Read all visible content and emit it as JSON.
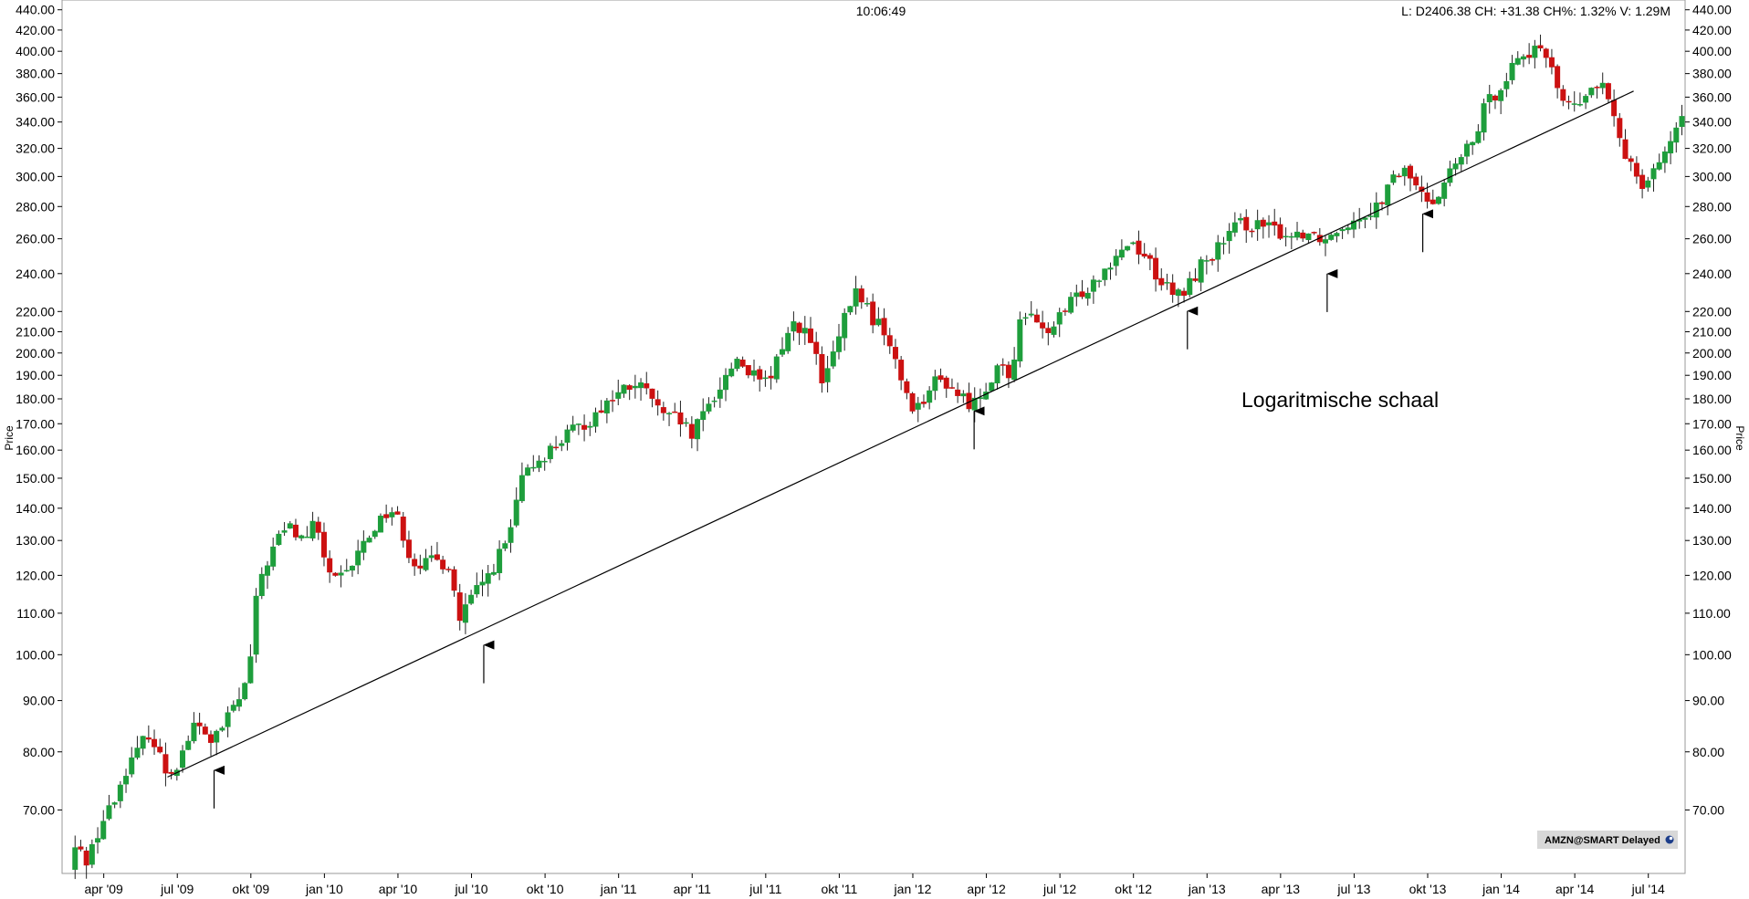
{
  "header": {
    "time": "10:06:49",
    "quote": "L: D2406.38 CH: +31.38 CH%: 1.32% V: 1.29M"
  },
  "badge": {
    "label": "AMZN@SMART Delayed",
    "icon": "status-dot-icon"
  },
  "annotation": "Logaritmische schaal",
  "colors": {
    "up": "#1e9e3c",
    "down": "#cc1111",
    "line": "#000000",
    "frame": "#9a9a9a",
    "badge_bg": "#d8d8d8"
  },
  "chart_data": {
    "type": "candlestick",
    "scale": "log",
    "ylabel": "Price",
    "ylim": [
      60.5,
      450
    ],
    "y_ticks": [
      "70.00",
      "80.00",
      "90.00",
      "100.00",
      "110.00",
      "120.00",
      "130.00",
      "140.00",
      "150.00",
      "160.00",
      "170.00",
      "180.00",
      "190.00",
      "200.00",
      "210.00",
      "220.00",
      "240.00",
      "260.00",
      "280.00",
      "300.00",
      "320.00",
      "340.00",
      "360.00",
      "380.00",
      "400.00",
      "420.00",
      "440.00"
    ],
    "x_ticks": [
      "apr '09",
      "jul '09",
      "okt '09",
      "jan '10",
      "apr '10",
      "jul '10",
      "okt '10",
      "jan '11",
      "apr '11",
      "jul '11",
      "okt '11",
      "jan '12",
      "apr '12",
      "jul '12",
      "okt '12",
      "jan '13",
      "apr '13",
      "jul '13",
      "okt '13",
      "jan '14",
      "apr '14",
      "jul '14"
    ],
    "x_tick_months": [
      0,
      3,
      6,
      9,
      12,
      15,
      18,
      21,
      24,
      27,
      30,
      33,
      36,
      39,
      42,
      45,
      48,
      51,
      54,
      57,
      60,
      63
    ],
    "x_range_months": [
      -1.7,
      64.5
    ],
    "trendline": {
      "from": {
        "month": 2.6,
        "price": 75.5
      },
      "to": {
        "month": 62.4,
        "price": 365
      }
    },
    "support_arrows": [
      {
        "month": 4.5,
        "price": 78
      },
      {
        "month": 15.5,
        "price": 104
      },
      {
        "month": 35.5,
        "price": 178
      },
      {
        "month": 44.2,
        "price": 224
      },
      {
        "month": 49.9,
        "price": 244
      },
      {
        "month": 53.8,
        "price": 280
      }
    ],
    "anchors": [
      [
        -1.4,
        61
      ],
      [
        -1.1,
        65
      ],
      [
        -0.8,
        62
      ],
      [
        -0.5,
        64
      ],
      [
        -0.2,
        67
      ],
      [
        0.2,
        70
      ],
      [
        0.5,
        72
      ],
      [
        0.9,
        77
      ],
      [
        1.4,
        80
      ],
      [
        1.8,
        84
      ],
      [
        2.2,
        80
      ],
      [
        2.6,
        76
      ],
      [
        3.0,
        78
      ],
      [
        3.4,
        82
      ],
      [
        3.7,
        85
      ],
      [
        4.0,
        84
      ],
      [
        4.4,
        82
      ],
      [
        4.8,
        84
      ],
      [
        5.2,
        88
      ],
      [
        5.6,
        91
      ],
      [
        5.9,
        95
      ],
      [
        6.3,
        118
      ],
      [
        6.8,
        126
      ],
      [
        7.2,
        132
      ],
      [
        7.6,
        134
      ],
      [
        8.1,
        130
      ],
      [
        8.6,
        135
      ],
      [
        9.0,
        125
      ],
      [
        9.4,
        118
      ],
      [
        9.9,
        120
      ],
      [
        10.5,
        128
      ],
      [
        11.2,
        136
      ],
      [
        11.7,
        140
      ],
      [
        12.1,
        135
      ],
      [
        12.5,
        125
      ],
      [
        13.0,
        123
      ],
      [
        13.6,
        124
      ],
      [
        14.1,
        123
      ],
      [
        14.5,
        108
      ],
      [
        15.0,
        114
      ],
      [
        15.5,
        118
      ],
      [
        16.0,
        124
      ],
      [
        16.5,
        130
      ],
      [
        17.0,
        148
      ],
      [
        17.6,
        156
      ],
      [
        18.2,
        160
      ],
      [
        18.8,
        165
      ],
      [
        19.3,
        168
      ],
      [
        19.9,
        172
      ],
      [
        20.4,
        178
      ],
      [
        21.0,
        182
      ],
      [
        21.6,
        186
      ],
      [
        22.0,
        184
      ],
      [
        22.4,
        180
      ],
      [
        22.8,
        172
      ],
      [
        23.4,
        172
      ],
      [
        24.0,
        165
      ],
      [
        24.7,
        178
      ],
      [
        25.3,
        188
      ],
      [
        25.8,
        198
      ],
      [
        26.3,
        192
      ],
      [
        26.8,
        186
      ],
      [
        27.2,
        188
      ],
      [
        27.7,
        205
      ],
      [
        28.2,
        215
      ],
      [
        28.6,
        210
      ],
      [
        29.0,
        200
      ],
      [
        29.3,
        186
      ],
      [
        29.8,
        200
      ],
      [
        30.2,
        215
      ],
      [
        30.6,
        230
      ],
      [
        31.0,
        226
      ],
      [
        31.4,
        215
      ],
      [
        31.8,
        212
      ],
      [
        32.2,
        198
      ],
      [
        32.6,
        186
      ],
      [
        33.1,
        175
      ],
      [
        33.5,
        182
      ],
      [
        34.0,
        188
      ],
      [
        34.5,
        186
      ],
      [
        35.0,
        180
      ],
      [
        35.5,
        178
      ],
      [
        36.0,
        186
      ],
      [
        36.5,
        195
      ],
      [
        37.0,
        185
      ],
      [
        37.4,
        222
      ],
      [
        37.9,
        215
      ],
      [
        38.3,
        210
      ],
      [
        38.7,
        212
      ],
      [
        39.2,
        220
      ],
      [
        39.7,
        228
      ],
      [
        40.3,
        235
      ],
      [
        40.9,
        245
      ],
      [
        41.5,
        255
      ],
      [
        42.0,
        258
      ],
      [
        42.6,
        248
      ],
      [
        43.1,
        236
      ],
      [
        43.6,
        228
      ],
      [
        44.1,
        230
      ],
      [
        44.6,
        242
      ],
      [
        45.1,
        250
      ],
      [
        45.6,
        256
      ],
      [
        46.0,
        264
      ],
      [
        46.5,
        270
      ],
      [
        47.0,
        268
      ],
      [
        47.5,
        266
      ],
      [
        48.0,
        264
      ],
      [
        48.5,
        262
      ],
      [
        49.0,
        265
      ],
      [
        49.5,
        262
      ],
      [
        49.9,
        260
      ],
      [
        50.4,
        268
      ],
      [
        50.9,
        272
      ],
      [
        51.4,
        276
      ],
      [
        51.9,
        280
      ],
      [
        52.4,
        292
      ],
      [
        52.9,
        305
      ],
      [
        53.3,
        300
      ],
      [
        53.8,
        285
      ],
      [
        54.3,
        286
      ],
      [
        54.8,
        300
      ],
      [
        55.3,
        312
      ],
      [
        55.8,
        322
      ],
      [
        56.3,
        350
      ],
      [
        56.8,
        365
      ],
      [
        57.3,
        382
      ],
      [
        57.7,
        395
      ],
      [
        58.2,
        400
      ],
      [
        58.6,
        396
      ],
      [
        59.0,
        396
      ],
      [
        59.4,
        360
      ],
      [
        59.9,
        350
      ],
      [
        60.4,
        358
      ],
      [
        60.8,
        370
      ],
      [
        61.2,
        368
      ],
      [
        61.6,
        340
      ],
      [
        62.0,
        318
      ],
      [
        62.4,
        308
      ],
      [
        62.8,
        295
      ],
      [
        63.2,
        305
      ],
      [
        63.6,
        318
      ],
      [
        64.0,
        325
      ],
      [
        64.4,
        340
      ]
    ]
  }
}
